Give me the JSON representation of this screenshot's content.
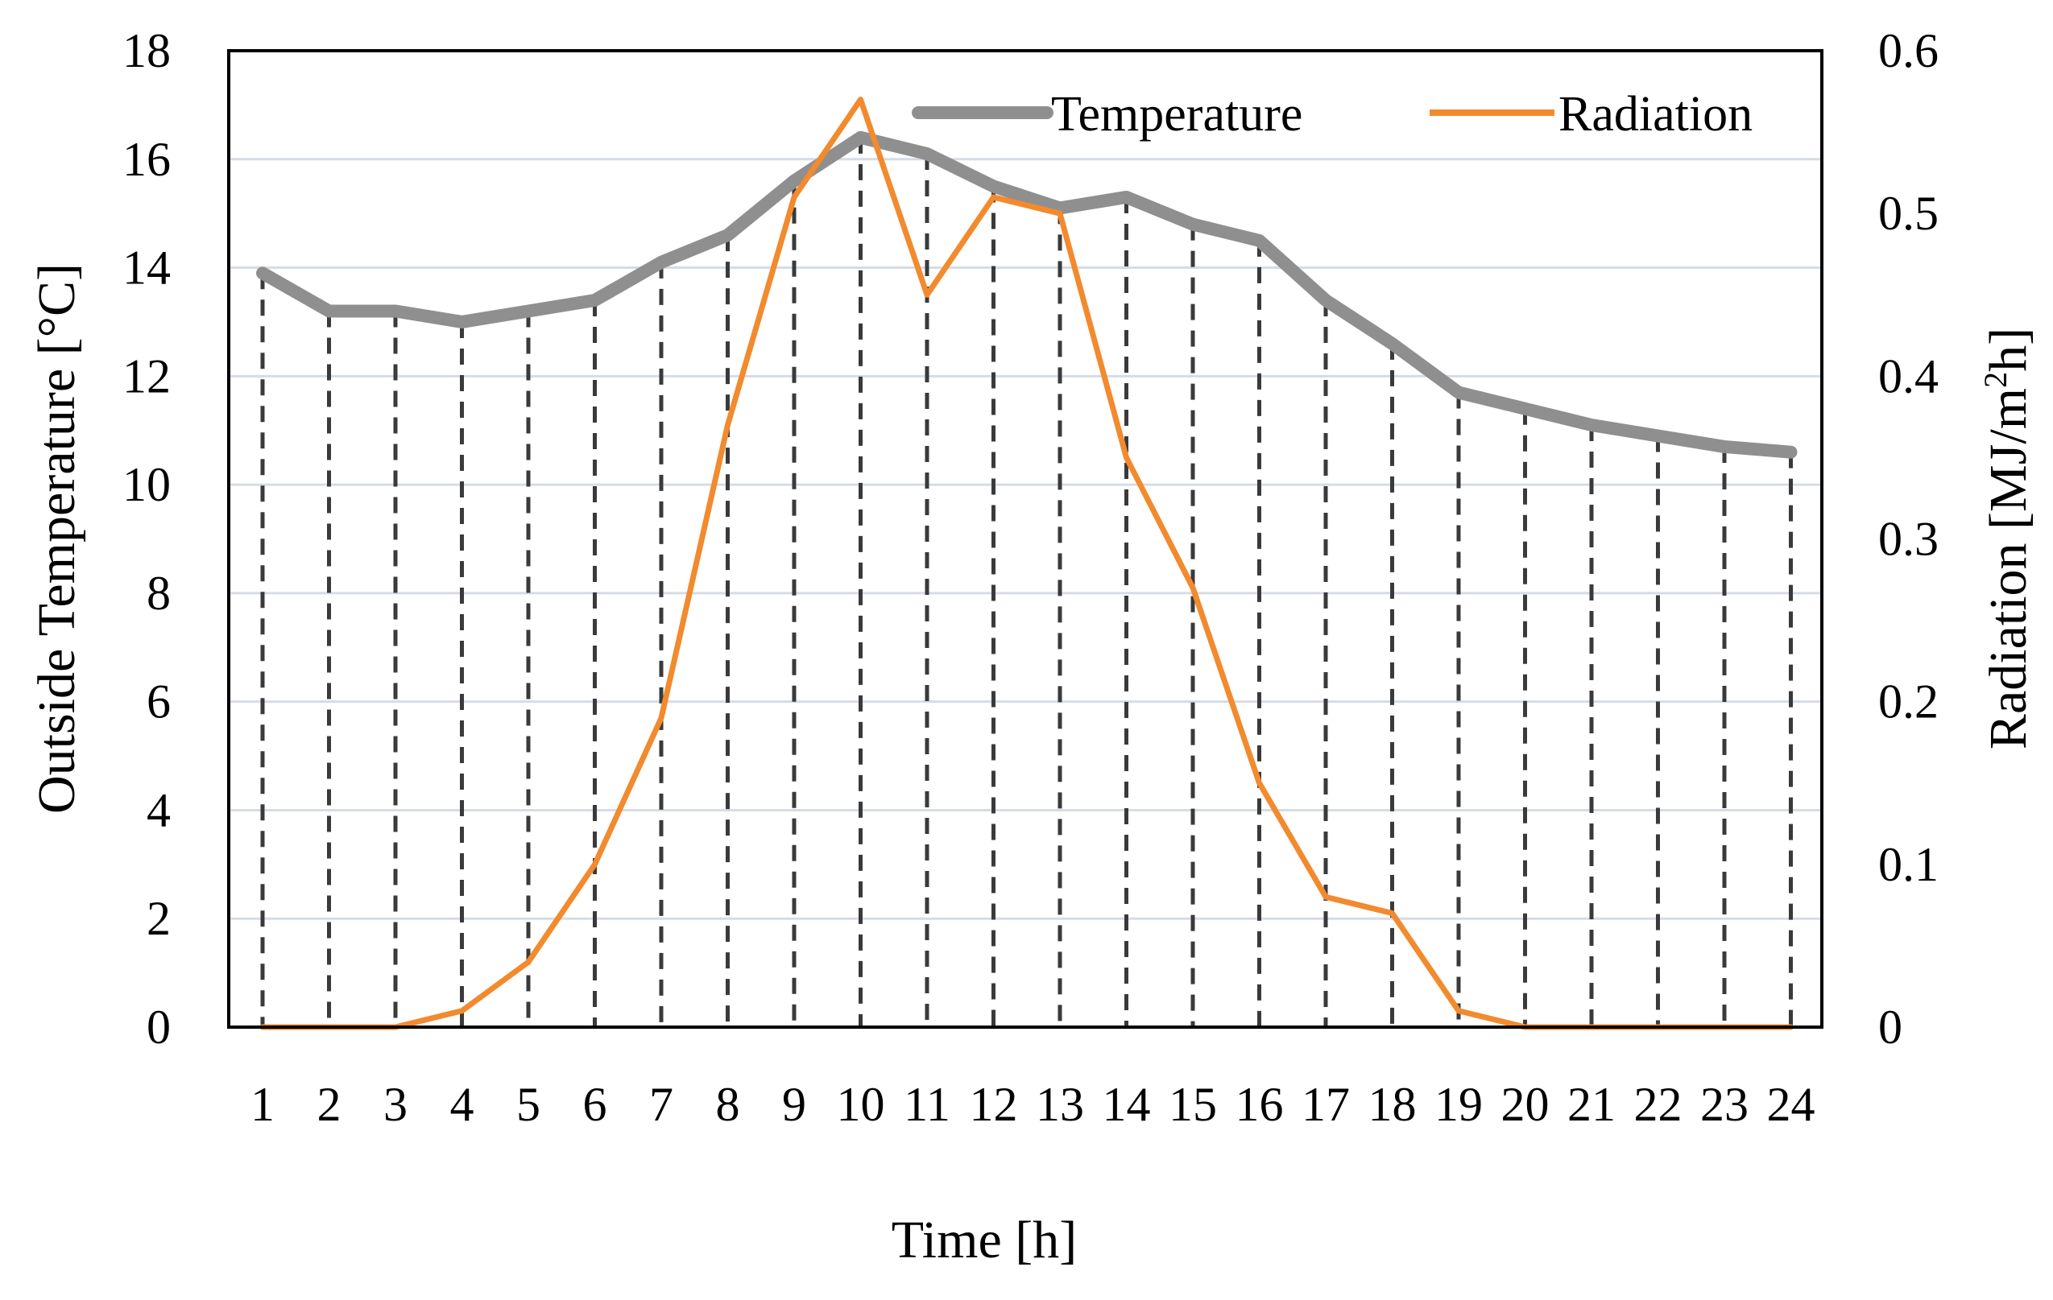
{
  "chart_data": {
    "type": "line",
    "title": "",
    "xlabel": "Time [h]",
    "ylabel_left": "Outside Temperature [°C]",
    "ylabel_right_parts": [
      "Radiation [MJ/m",
      "2",
      "h]"
    ],
    "categories": [
      "1",
      "2",
      "3",
      "4",
      "5",
      "6",
      "7",
      "8",
      "9",
      "10",
      "11",
      "12",
      "13",
      "14",
      "15",
      "16",
      "17",
      "18",
      "19",
      "20",
      "21",
      "22",
      "23",
      "24"
    ],
    "y_left_ticks": [
      "0",
      "2",
      "4",
      "6",
      "8",
      "10",
      "12",
      "14",
      "16",
      "18"
    ],
    "y_right_ticks": [
      "0",
      "0.1",
      "0.2",
      "0.3",
      "0.4",
      "0.5",
      "0.6"
    ],
    "ylim_left": [
      0,
      18
    ],
    "ylim_right": [
      0,
      0.6
    ],
    "grid": true,
    "drop_lines": true,
    "legend_position": "top-right",
    "series": [
      {
        "name": "Temperature",
        "axis": "left",
        "color": "#8f8f8f",
        "values": [
          13.9,
          13.2,
          13.2,
          13.0,
          13.2,
          13.4,
          14.1,
          14.6,
          15.6,
          16.4,
          16.1,
          15.5,
          15.1,
          15.3,
          14.8,
          14.5,
          13.4,
          12.6,
          11.7,
          11.4,
          11.1,
          10.9,
          10.7,
          10.6
        ]
      },
      {
        "name": "Radiation",
        "axis": "right",
        "color": "#f28a2e",
        "values": [
          0,
          0,
          0,
          0.01,
          0.04,
          0.1,
          0.19,
          0.37,
          0.51,
          0.57,
          0.45,
          0.51,
          0.5,
          0.35,
          0.27,
          0.15,
          0.08,
          0.07,
          0.01,
          0,
          0,
          0,
          0,
          0
        ]
      }
    ]
  }
}
